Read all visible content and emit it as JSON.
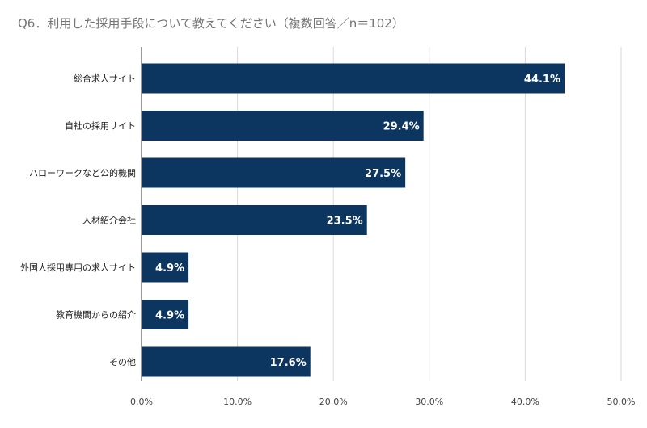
{
  "chart_data": {
    "type": "bar",
    "orientation": "horizontal",
    "title": "Q6．利用した採用手段について教えてください（複数回答／n＝102）",
    "categories": [
      "総合求人サイト",
      "自社の採用サイト",
      "ハローワークなど公的機関",
      "人材紹介会社",
      "外国人採用専用の求人サイト",
      "教育機関からの紹介",
      "その他"
    ],
    "values": [
      44.1,
      29.4,
      27.5,
      23.5,
      4.9,
      4.9,
      17.6
    ],
    "data_labels": [
      "44.1%",
      "29.4%",
      "27.5%",
      "23.5%",
      "4.9%",
      "4.9%",
      "17.6%"
    ],
    "xlim": [
      0,
      50
    ],
    "xticks": [
      "0.0%",
      "10.0%",
      "20.0%",
      "30.0%",
      "40.0%",
      "50.0%"
    ],
    "xlabel": "",
    "ylabel": "",
    "grid": true,
    "bar_color": "#0c3660"
  }
}
